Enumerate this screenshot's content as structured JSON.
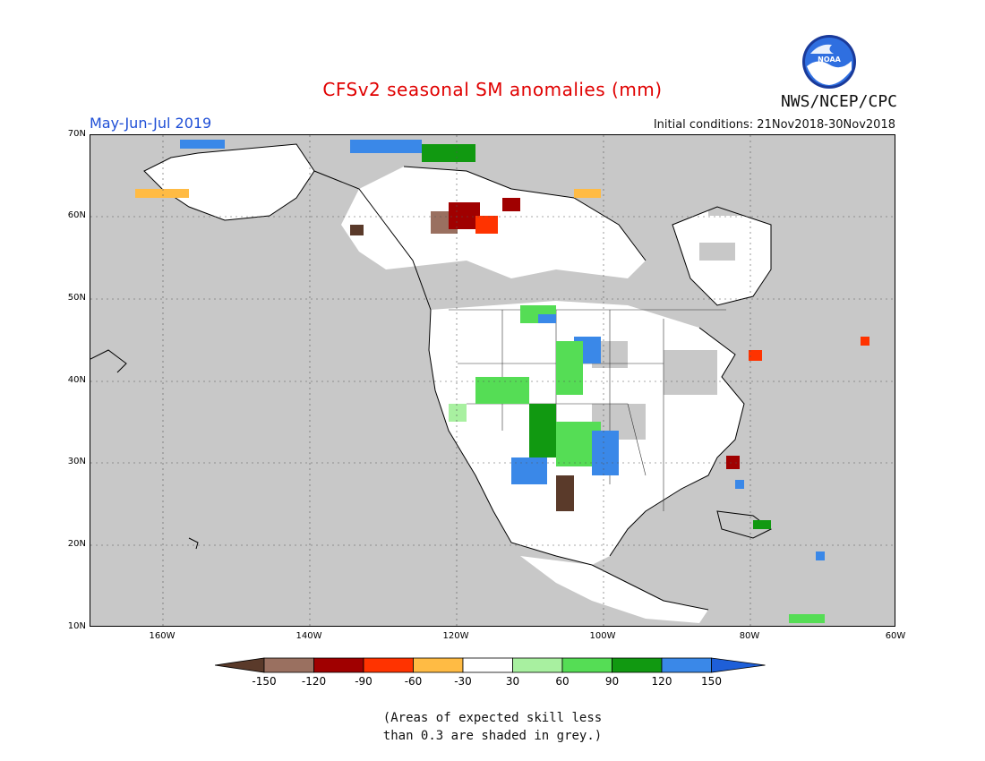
{
  "title": "CFSv2 seasonal SM anomalies (mm)",
  "period": "May-Jun-Jul 2019",
  "initial_conditions": "Initial conditions: 21Nov2018-30Nov2018",
  "agency": "NWS/NCEP/CPC",
  "logo_text": "NOAA",
  "lat_labels": [
    "70N",
    "60N",
    "50N",
    "40N",
    "30N",
    "20N",
    "10N"
  ],
  "lon_labels": [
    "160W",
    "140W",
    "120W",
    "100W",
    "80W",
    "60W"
  ],
  "colorbar": {
    "ticks": [
      "-150",
      "-120",
      "-90",
      "-60",
      "-30",
      "30",
      "60",
      "90",
      "120",
      "150"
    ],
    "colors": [
      "#5a3a2a",
      "#9a7060",
      "#a00000",
      "#ff3300",
      "#ffbb44",
      "#ffffff",
      "#a8f0a0",
      "#55dd55",
      "#119911",
      "#3a88e8",
      "#1e5fd8"
    ]
  },
  "note_line1": "(Areas of expected skill less",
  "note_line2": "than 0.3 are shaded in grey.)",
  "colors": {
    "grey_area": "#c8c8c8",
    "title": "#e00000",
    "period": "#1f4fd6"
  }
}
